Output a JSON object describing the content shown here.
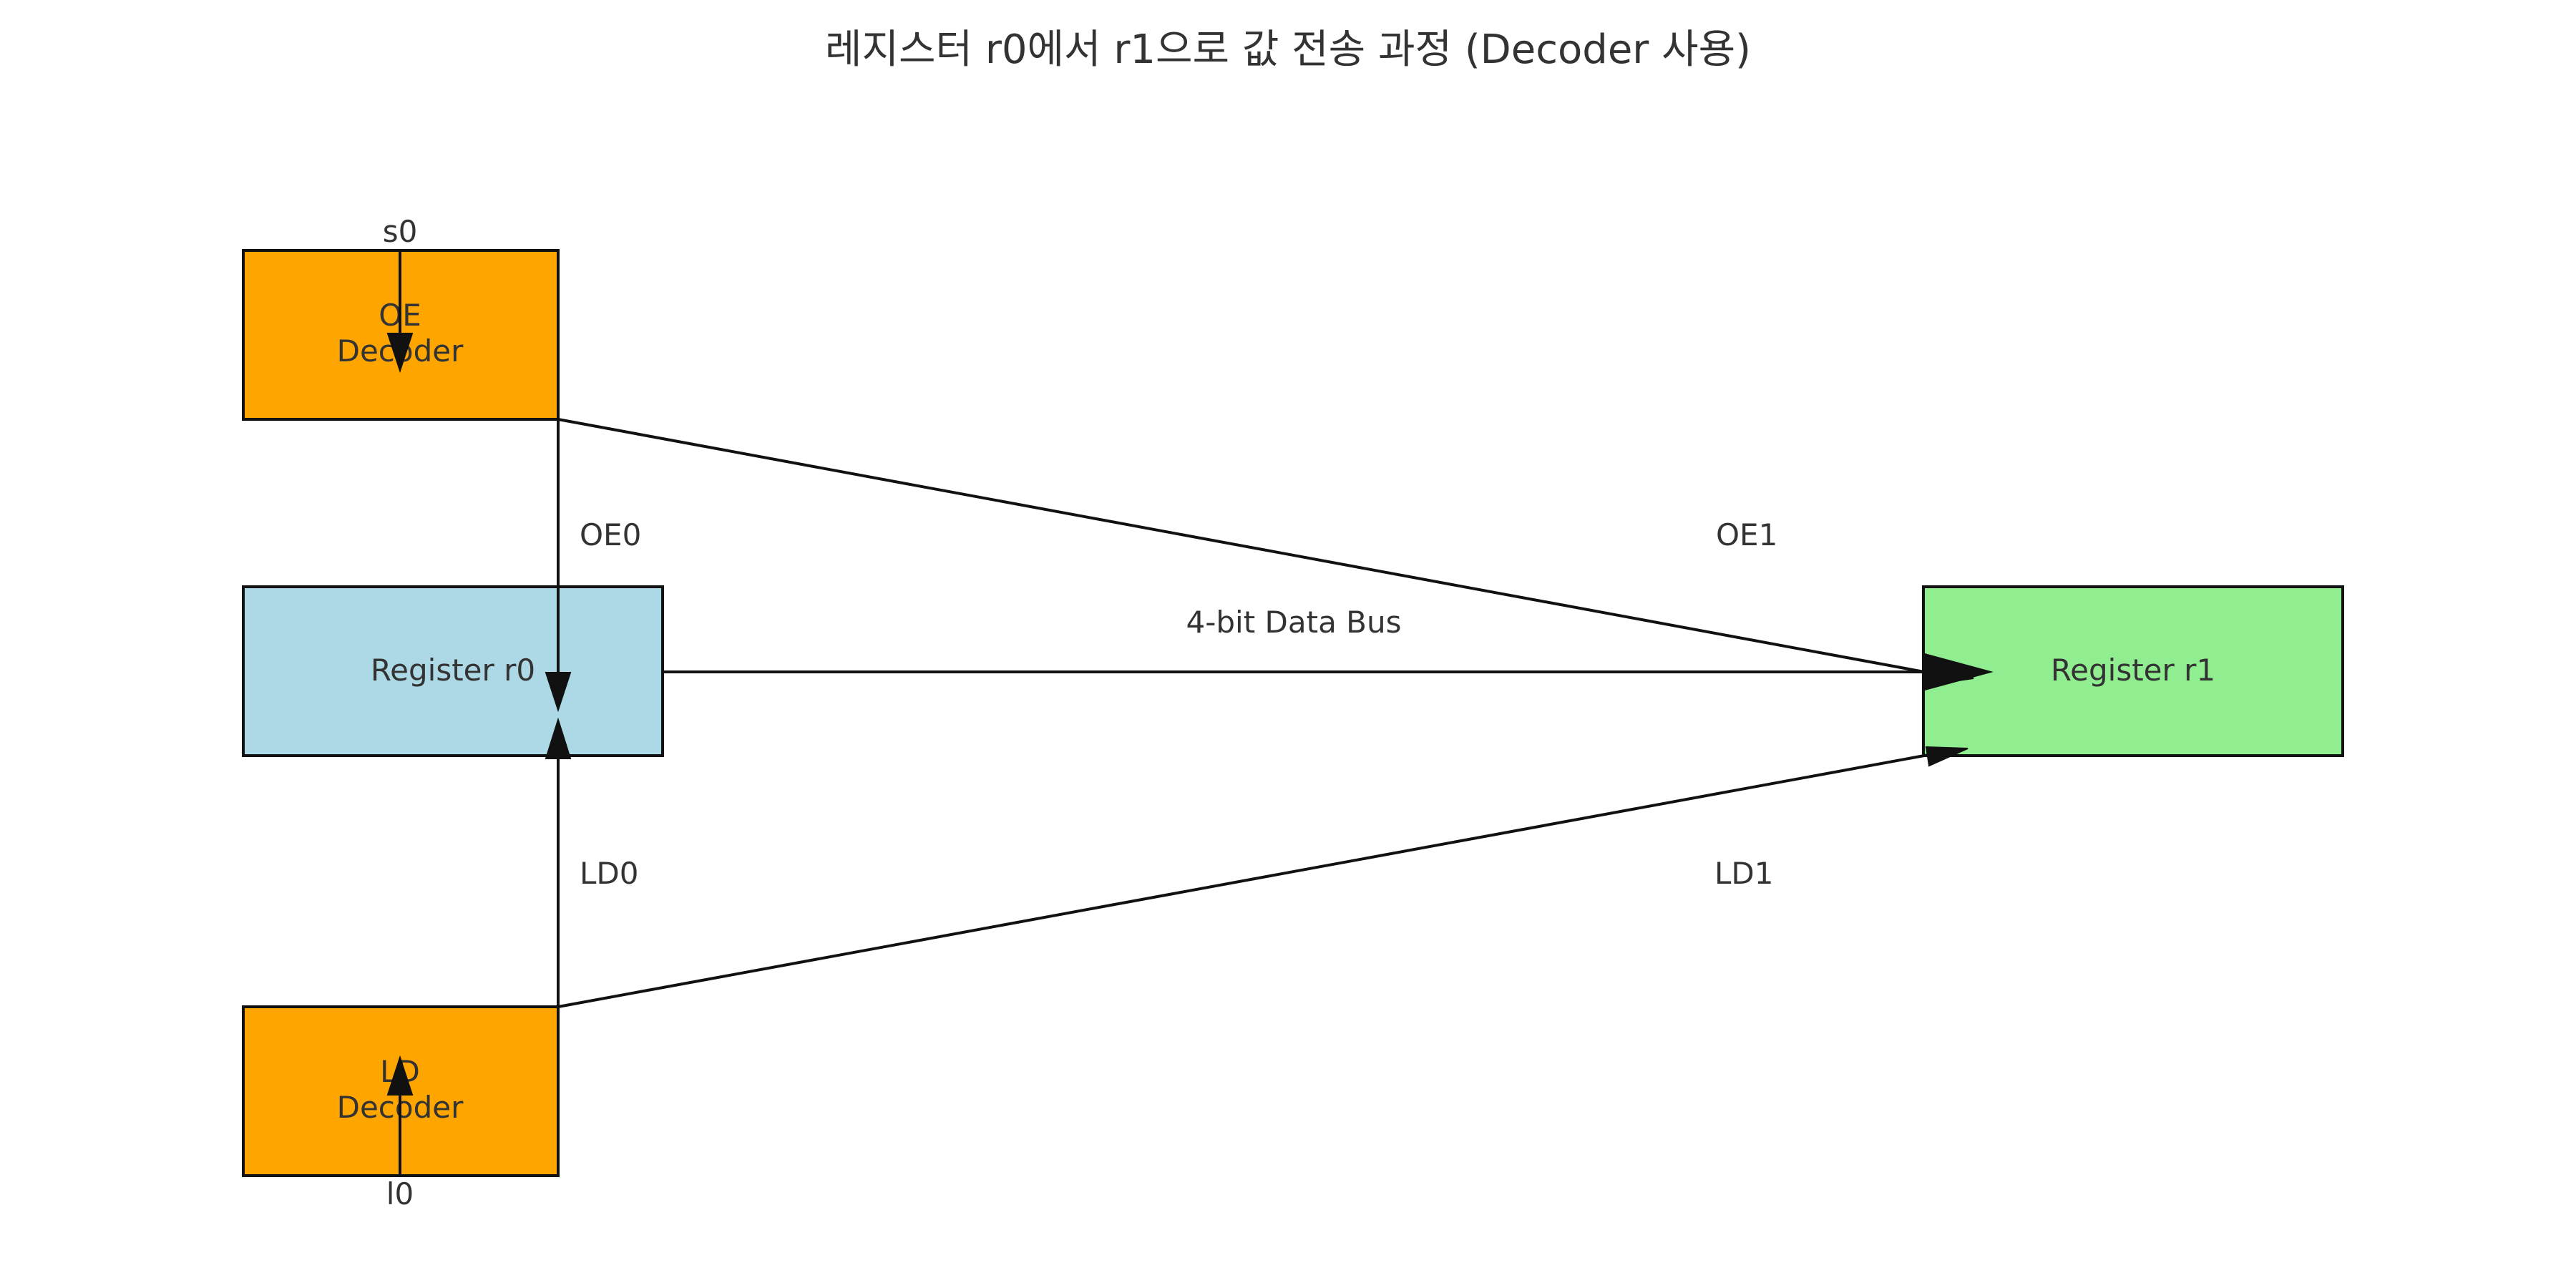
{
  "title": "레지스터 r0에서 r1으로 값 전송 과정 (Decoder 사용)",
  "blocks": {
    "oe_decoder": {
      "line1": "OE",
      "line2": "Decoder",
      "input": "s0",
      "color": "#FFA500"
    },
    "ld_decoder": {
      "line1": "LD",
      "line2": "Decoder",
      "input": "l0",
      "color": "#FFA500"
    },
    "register_r0": {
      "label": "Register r0",
      "color": "#ADD8E6"
    },
    "register_r1": {
      "label": "Register r1",
      "color": "#90EE90"
    }
  },
  "signals": {
    "oe0": "OE0",
    "oe1": "OE1",
    "ld0": "LD0",
    "ld1": "LD1",
    "bus": "4-bit Data Bus"
  }
}
